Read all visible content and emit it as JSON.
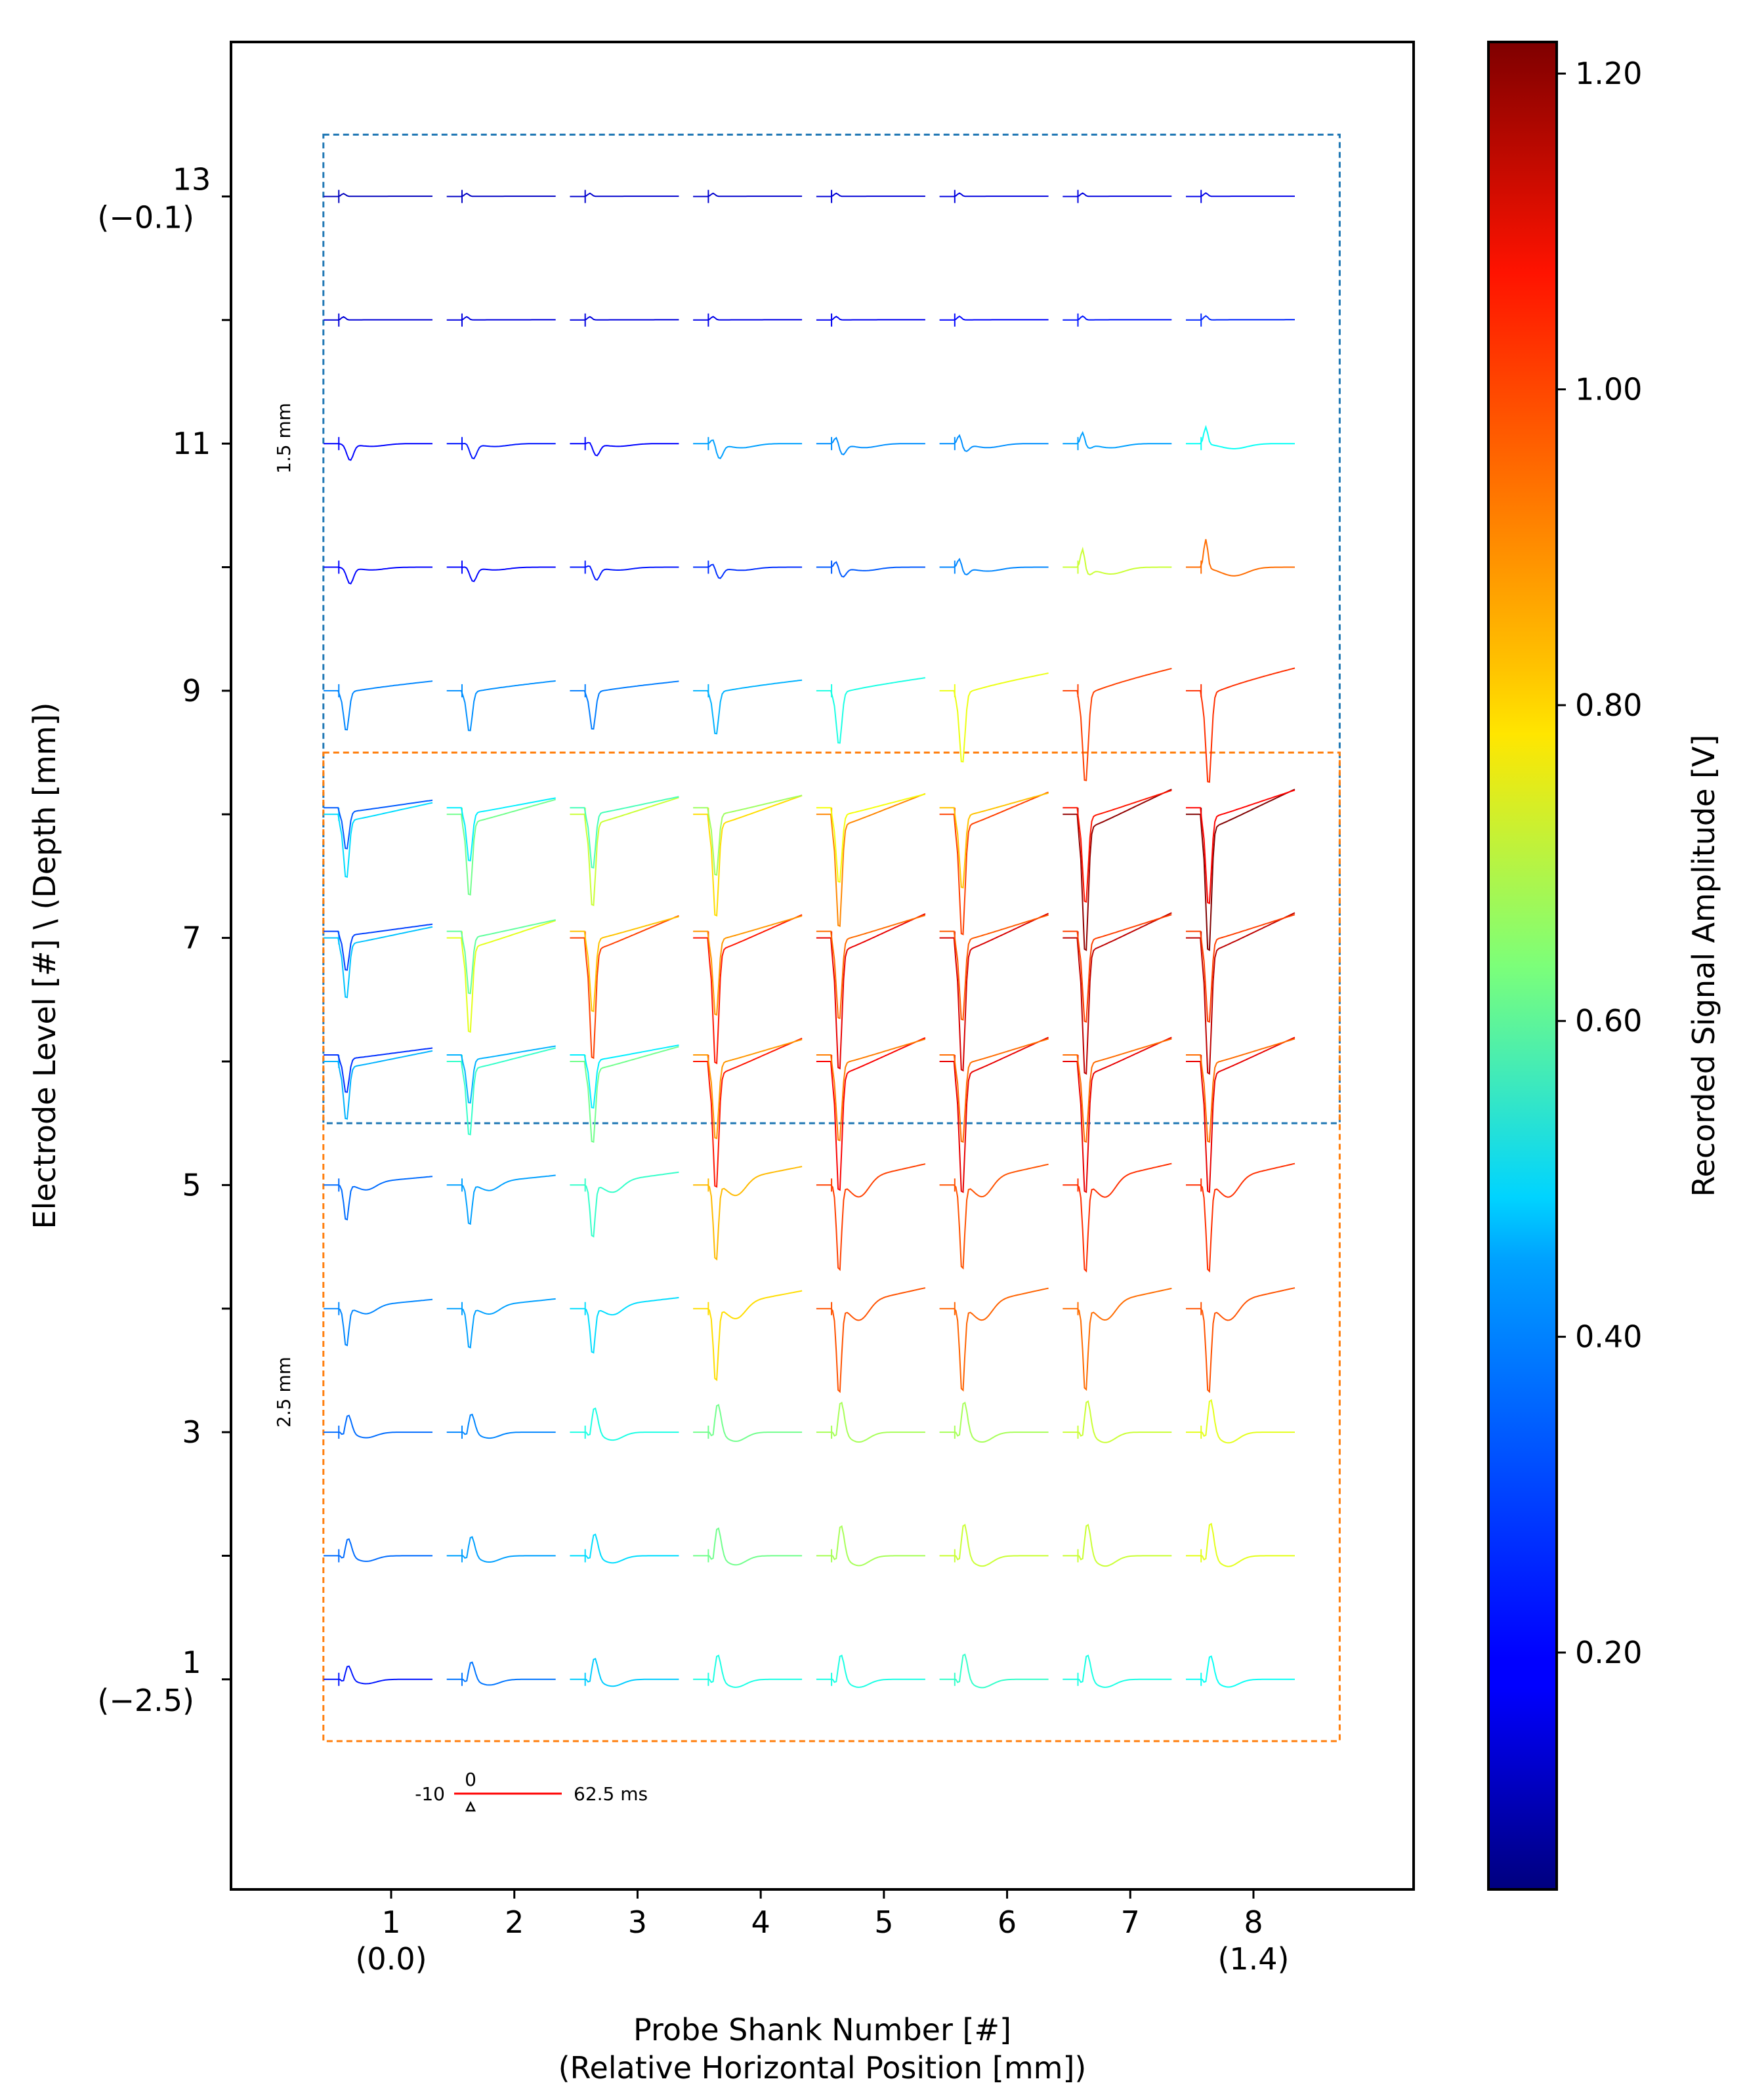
{
  "chart_data": {
    "type": "line",
    "subtype": "waveform-grid",
    "x_axis": {
      "title_line1": "Probe Shank Number [#]",
      "title_line2": "(Relative Horizontal Position [mm])",
      "range": [
        -0.3,
        9.3
      ],
      "ticks": [
        {
          "value": 1,
          "label": "1",
          "sub": "(0.0)"
        },
        {
          "value": 2,
          "label": "2",
          "sub": ""
        },
        {
          "value": 3,
          "label": "3",
          "sub": ""
        },
        {
          "value": 4,
          "label": "4",
          "sub": ""
        },
        {
          "value": 5,
          "label": "5",
          "sub": ""
        },
        {
          "value": 6,
          "label": "6",
          "sub": ""
        },
        {
          "value": 7,
          "label": "7",
          "sub": ""
        },
        {
          "value": 8,
          "label": "8",
          "sub": "(1.4)"
        }
      ]
    },
    "y_axis": {
      "title": "Electrode Level [#] \\ (Depth [mm])",
      "range": [
        -0.7,
        14.25
      ],
      "ticks": [
        {
          "value": 1,
          "label": "1",
          "sub": "(−2.5)"
        },
        {
          "value": 2,
          "label": "",
          "sub": ""
        },
        {
          "value": 3,
          "label": "3",
          "sub": ""
        },
        {
          "value": 4,
          "label": "",
          "sub": ""
        },
        {
          "value": 5,
          "label": "5",
          "sub": ""
        },
        {
          "value": 6,
          "label": "",
          "sub": ""
        },
        {
          "value": 7,
          "label": "7",
          "sub": ""
        },
        {
          "value": 8,
          "label": "",
          "sub": ""
        },
        {
          "value": 9,
          "label": "9",
          "sub": ""
        },
        {
          "value": 10,
          "label": "",
          "sub": ""
        },
        {
          "value": 11,
          "label": "11",
          "sub": ""
        },
        {
          "value": 12,
          "label": "",
          "sub": ""
        },
        {
          "value": 13,
          "label": "13",
          "sub": "(−0.1)"
        }
      ]
    },
    "colorbar": {
      "label": "Recorded Signal Amplitude [V]",
      "range": [
        0.05,
        1.22
      ],
      "ticks": [
        {
          "value": 0.2,
          "label": "0.20"
        },
        {
          "value": 0.4,
          "label": "0.40"
        },
        {
          "value": 0.6,
          "label": "0.60"
        },
        {
          "value": 0.8,
          "label": "0.80"
        },
        {
          "value": 1.0,
          "label": "1.00"
        },
        {
          "value": 1.2,
          "label": "1.20"
        }
      ]
    },
    "regions": [
      {
        "label": "1.5 mm",
        "color": "#1f77b4",
        "x_range": [
          0.45,
          8.7
        ],
        "y_range": [
          5.5,
          13.5
        ]
      },
      {
        "label": "2.5 mm",
        "color": "#ff7f0e",
        "x_range": [
          0.45,
          8.7
        ],
        "y_range": [
          0.5,
          8.5
        ]
      }
    ],
    "time_scale": {
      "start_label": "-10",
      "zero_label": "0",
      "end_label": "62.5 ms",
      "color": "#ff0000"
    },
    "amplitude_levels": [
      1,
      2,
      3,
      4,
      5,
      6,
      7,
      8,
      9,
      10,
      11,
      12,
      13
    ],
    "amplitude_shanks": [
      1,
      2,
      3,
      4,
      5,
      6,
      7,
      8
    ],
    "amplitude_grid_V": [
      [
        0.22,
        0.33,
        0.43,
        0.52,
        0.52,
        0.55,
        0.52,
        0.5
      ],
      [
        0.32,
        0.38,
        0.45,
        0.62,
        0.68,
        0.72,
        0.72,
        0.75
      ],
      [
        0.32,
        0.35,
        0.52,
        0.62,
        0.68,
        0.68,
        0.72,
        0.75
      ],
      [
        0.35,
        0.38,
        0.45,
        0.82,
        0.98,
        0.96,
        0.95,
        0.98
      ],
      [
        0.32,
        0.38,
        0.55,
        0.86,
        1.0,
        0.98,
        1.02,
        1.02
      ],
      [
        0.4,
        0.55,
        0.62,
        1.05,
        1.08,
        1.1,
        1.1,
        1.1
      ],
      [
        0.42,
        0.75,
        1.0,
        1.05,
        1.1,
        1.12,
        1.15,
        1.15
      ],
      [
        0.45,
        0.62,
        0.72,
        0.82,
        0.92,
        1.0,
        1.2,
        1.22
      ],
      [
        0.35,
        0.36,
        0.34,
        0.4,
        0.52,
        0.76,
        1.0,
        1.02
      ],
      [
        0.2,
        0.2,
        0.22,
        0.25,
        0.3,
        0.35,
        0.72,
        0.95
      ],
      [
        0.2,
        0.22,
        0.2,
        0.38,
        0.36,
        0.36,
        0.38,
        0.5
      ],
      [
        0.15,
        0.16,
        0.16,
        0.17,
        0.18,
        0.2,
        0.22,
        0.24
      ],
      [
        0.12,
        0.13,
        0.14,
        0.14,
        0.15,
        0.16,
        0.16,
        0.17
      ]
    ],
    "waveform_template_ms": [
      -10,
      0,
      2,
      5,
      8,
      12,
      20,
      30,
      45,
      62.5
    ],
    "waveform_layer_kinds": [
      "bottom-biphasic",
      "bottom-biphasic",
      "bottom-biphasic",
      "mid-trough",
      "mid-trough",
      "overlap-trough",
      "overlap-trough",
      "overlap-trough",
      "trough",
      "upper-small",
      "upper-small",
      "top-flat",
      "top-flat"
    ]
  }
}
